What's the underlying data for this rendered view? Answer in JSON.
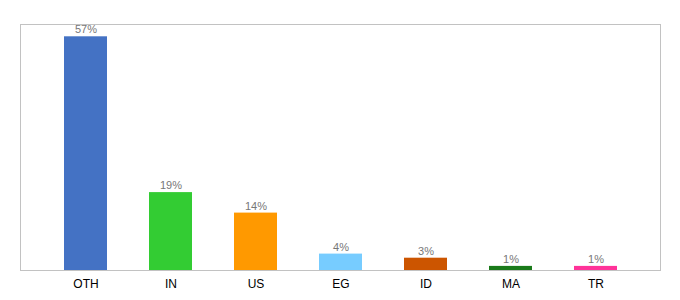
{
  "chart_data": {
    "type": "bar",
    "categories": [
      "OTH",
      "IN",
      "US",
      "EG",
      "ID",
      "MA",
      "TR"
    ],
    "values": [
      57,
      19,
      14,
      4,
      3,
      1,
      1
    ],
    "value_labels": [
      "57%",
      "19%",
      "14%",
      "4%",
      "3%",
      "1%",
      "1%"
    ],
    "colors": [
      "#4472c4",
      "#33cc33",
      "#ff9900",
      "#77ccff",
      "#cc5500",
      "#1a7a1a",
      "#ff3399"
    ],
    "ylim": [
      0,
      60
    ],
    "yticks": [],
    "grid": false,
    "data_labels": true,
    "tick_labels": "x"
  }
}
